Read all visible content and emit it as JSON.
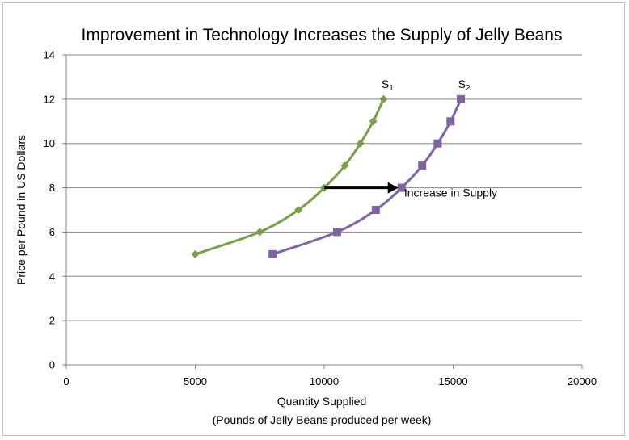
{
  "chart_data": {
    "type": "line",
    "title": "Improvement in Technology Increases the Supply of Jelly Beans",
    "xlabel": "Quantity Supplied",
    "xlabel2": "(Pounds of Jelly Beans produced per week)",
    "ylabel": "Price per Pound in US Dollars",
    "xlim": [
      0,
      20000
    ],
    "ylim": [
      0,
      14
    ],
    "xticks": [
      0,
      5000,
      10000,
      15000,
      20000
    ],
    "yticks": [
      0,
      2,
      4,
      6,
      8,
      10,
      12,
      14
    ],
    "grid": "horizontal",
    "series": [
      {
        "name": "S",
        "subscript": "1",
        "color": "#77a046",
        "marker": "diamond",
        "points": [
          [
            5000,
            5
          ],
          [
            7500,
            6
          ],
          [
            9000,
            7
          ],
          [
            10000,
            8
          ],
          [
            10800,
            9
          ],
          [
            11400,
            10
          ],
          [
            11900,
            11
          ],
          [
            12300,
            12
          ]
        ]
      },
      {
        "name": "S",
        "subscript": "2",
        "color": "#8064a2",
        "marker": "square",
        "points": [
          [
            8000,
            5
          ],
          [
            10500,
            6
          ],
          [
            12000,
            7
          ],
          [
            13000,
            8
          ],
          [
            13800,
            9
          ],
          [
            14400,
            10
          ],
          [
            14900,
            11
          ],
          [
            15300,
            12
          ]
        ]
      }
    ],
    "annotations": {
      "arrow": {
        "from": [
          10000,
          8
        ],
        "to": [
          13000,
          8
        ],
        "color": "#000000"
      },
      "text": "Increase in  Supply",
      "text_anchor": [
        13100,
        7.6
      ]
    }
  }
}
